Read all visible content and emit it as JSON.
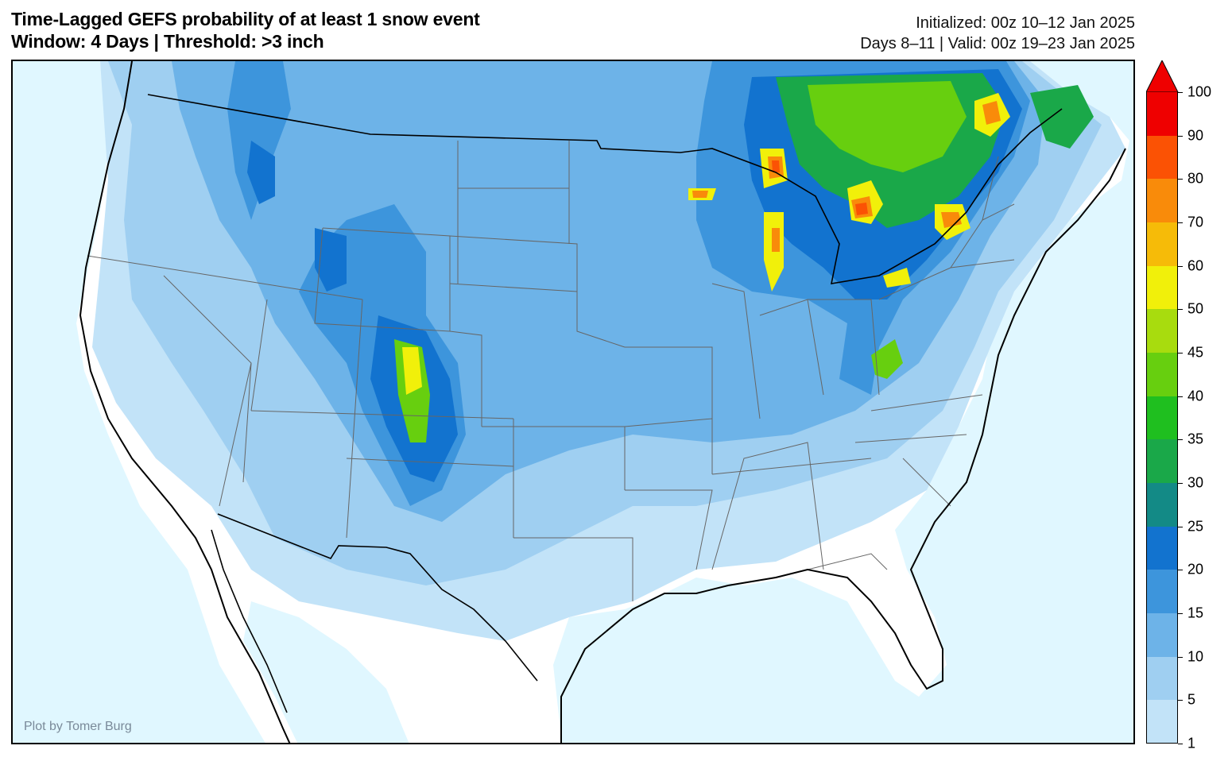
{
  "header": {
    "title_line1": "Time-Lagged GEFS probability of at least 1 snow event",
    "title_line2": "Window: 4 Days | Threshold: >3 inch",
    "init_line": "Initialized: 00z 10–12 Jan 2025",
    "valid_line": "Days 8–11 | Valid: 00z 19–23 Jan 2025"
  },
  "credit": "Plot by Tomer Burg",
  "colorbar": {
    "levels": [
      "1",
      "5",
      "10",
      "15",
      "20",
      "25",
      "30",
      "35",
      "40",
      "45",
      "50",
      "60",
      "70",
      "80",
      "90",
      "100"
    ],
    "colors": [
      "#c2e3f8",
      "#9fcff1",
      "#6db3e8",
      "#3d95dc",
      "#1273cf",
      "#138a86",
      "#1aa849",
      "#1fbf1f",
      "#67cf0f",
      "#a8dc0e",
      "#f1f00a",
      "#f6bb08",
      "#f98b0a",
      "#fb5204",
      "#ef0000"
    ],
    "overflow_color": "#ef0000"
  },
  "map": {
    "ocean_color": "#e0f7ff",
    "land_color": "#ffffff"
  }
}
